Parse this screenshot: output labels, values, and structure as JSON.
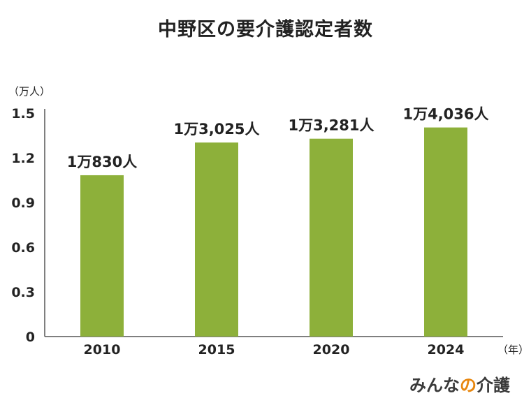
{
  "chart_data": {
    "type": "bar",
    "title": "中野区の要介護認定者数",
    "y_unit": "（万人）",
    "x_unit": "（年）",
    "categories": [
      "2010",
      "2015",
      "2020",
      "2024"
    ],
    "values": [
      1.083,
      1.3025,
      1.3281,
      1.4036
    ],
    "data_labels": [
      "1万830人",
      "1万3,025人",
      "1万3,281人",
      "1万4,036人"
    ],
    "y_ticks": [
      "0",
      "0.3",
      "0.6",
      "0.9",
      "1.2",
      "1.5"
    ],
    "ylim": [
      0,
      1.5
    ],
    "grid": false,
    "bar_color": "#8db03a",
    "axis_color": "#555555"
  },
  "logo": {
    "part1": "みんな",
    "part2": "の",
    "part3": "介護"
  }
}
